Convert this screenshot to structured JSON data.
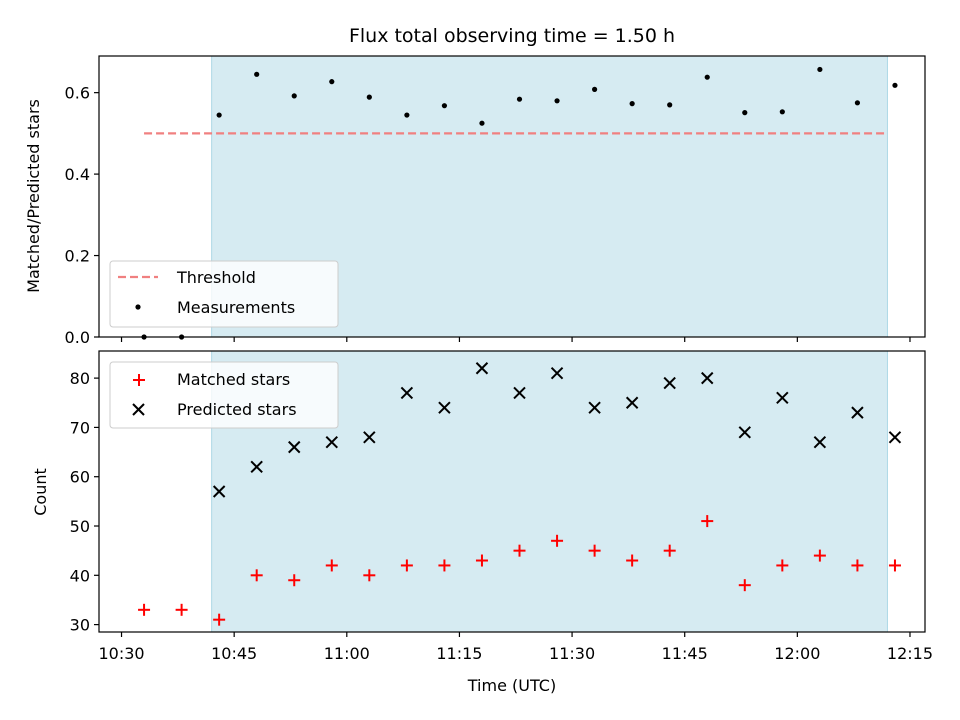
{
  "title": "Flux total observing time = 1.50 h",
  "colors": {
    "shade": "#add8e6",
    "threshold": "#f08080",
    "measurement": "#000000",
    "matched": "#ff0000",
    "predicted": "#000000"
  },
  "chart_data": [
    {
      "type": "scatter",
      "ylabel": "Matched/Predicted stars",
      "ylim": [
        0,
        0.69
      ],
      "yticks": [
        "0.0",
        "0.2",
        "0.4",
        "0.6"
      ],
      "ytick_values": [
        0.0,
        0.2,
        0.4,
        0.6
      ],
      "xlim": [
        "10:27",
        "12:17"
      ],
      "shaded_interval": [
        "10:42",
        "12:12"
      ],
      "legend": {
        "placement": "lower-left",
        "entries": [
          "Threshold",
          "Measurements"
        ]
      },
      "threshold": {
        "name": "Threshold",
        "y": 0.5,
        "x_range": [
          "10:33",
          "12:12"
        ],
        "style": "dashed"
      },
      "series": [
        {
          "name": "Measurements",
          "marker": "dot",
          "x": [
            "10:33",
            "10:38",
            "10:43",
            "10:48",
            "10:53",
            "10:58",
            "11:03",
            "11:08",
            "11:13",
            "11:18",
            "11:23",
            "11:28",
            "11:33",
            "11:38",
            "11:43",
            "11:48",
            "11:53",
            "11:58",
            "12:03",
            "12:08",
            "12:13"
          ],
          "y": [
            0.0,
            0.0,
            0.545,
            0.645,
            0.592,
            0.627,
            0.589,
            0.545,
            0.568,
            0.525,
            0.584,
            0.58,
            0.608,
            0.573,
            0.57,
            0.638,
            0.551,
            0.553,
            0.657,
            0.575,
            0.618
          ]
        }
      ]
    },
    {
      "type": "scatter",
      "xlabel": "Time (UTC)",
      "ylabel": "Count",
      "ylim": [
        28.5,
        85.5
      ],
      "yticks": [
        "30",
        "40",
        "50",
        "60",
        "70",
        "80"
      ],
      "ytick_values": [
        30,
        40,
        50,
        60,
        70,
        80
      ],
      "xlim": [
        "10:27",
        "12:17"
      ],
      "xticks": [
        "10:30",
        "10:45",
        "11:00",
        "11:15",
        "11:30",
        "11:45",
        "12:00",
        "12:15"
      ],
      "shaded_interval": [
        "10:42",
        "12:12"
      ],
      "legend": {
        "placement": "upper-left",
        "entries": [
          "Matched stars",
          "Predicted stars"
        ]
      },
      "series": [
        {
          "name": "Matched stars",
          "marker": "plus",
          "x": [
            "10:33",
            "10:38",
            "10:43",
            "10:48",
            "10:53",
            "10:58",
            "11:03",
            "11:08",
            "11:13",
            "11:18",
            "11:23",
            "11:28",
            "11:33",
            "11:38",
            "11:43",
            "11:48",
            "11:53",
            "11:58",
            "12:03",
            "12:08",
            "12:13"
          ],
          "y": [
            33,
            33,
            31,
            40,
            39,
            42,
            40,
            42,
            42,
            43,
            45,
            47,
            45,
            43,
            45,
            51,
            38,
            42,
            44,
            42,
            42
          ]
        },
        {
          "name": "Predicted stars",
          "marker": "x",
          "x": [
            "10:43",
            "10:48",
            "10:53",
            "10:58",
            "11:03",
            "11:08",
            "11:13",
            "11:18",
            "11:23",
            "11:28",
            "11:33",
            "11:38",
            "11:43",
            "11:48",
            "11:53",
            "11:58",
            "12:03",
            "12:08",
            "12:13"
          ],
          "y": [
            57,
            62,
            66,
            67,
            68,
            77,
            74,
            82,
            77,
            81,
            74,
            75,
            79,
            80,
            69,
            76,
            67,
            73,
            68
          ]
        }
      ]
    }
  ]
}
